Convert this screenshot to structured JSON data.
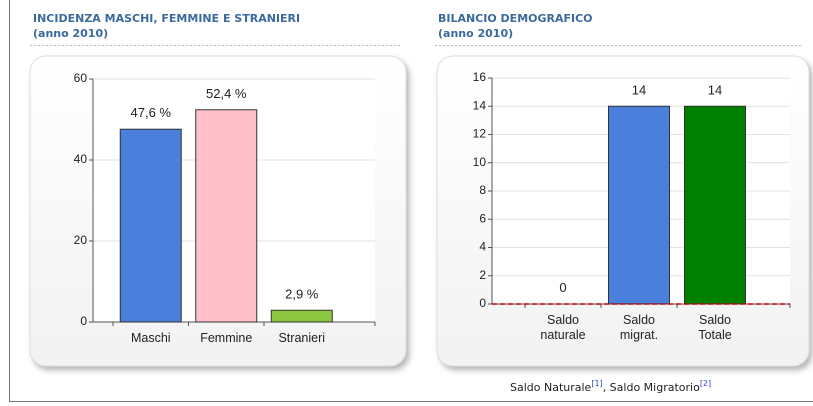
{
  "chart_data": [
    {
      "type": "bar",
      "title": "INCIDENZA MASCHI, FEMMINE E STRANIERI",
      "subtitle": "(anno 2010)",
      "categories": [
        "Maschi",
        "Femmine",
        "Stranieri"
      ],
      "values": [
        47.6,
        52.4,
        2.9
      ],
      "value_labels": [
        "47,6 %",
        "52,4 %",
        "2,9 %"
      ],
      "colors": [
        "#4a7fdc",
        "#ffc0cb",
        "#8dc63f"
      ],
      "ylim": [
        0,
        60
      ],
      "yticks": [
        0,
        20,
        40,
        60
      ],
      "grid": true
    },
    {
      "type": "bar",
      "title": "BILANCIO DEMOGRAFICO",
      "subtitle": "(anno 2010)",
      "categories": [
        "Saldo naturale",
        "Saldo migrat.",
        "Saldo Totale"
      ],
      "values": [
        0,
        14,
        14
      ],
      "colors": [
        "#4a7fdc",
        "#4a7fdc",
        "#008000"
      ],
      "ylim": [
        0,
        16
      ],
      "yticks": [
        0,
        2,
        4,
        6,
        8,
        10,
        12,
        14,
        16
      ],
      "grid": true,
      "zero_line_color": "#c00000"
    }
  ],
  "caption": [
    "Saldo Naturale",
    "[1]",
    ", Saldo Migratorio",
    "[2]"
  ]
}
